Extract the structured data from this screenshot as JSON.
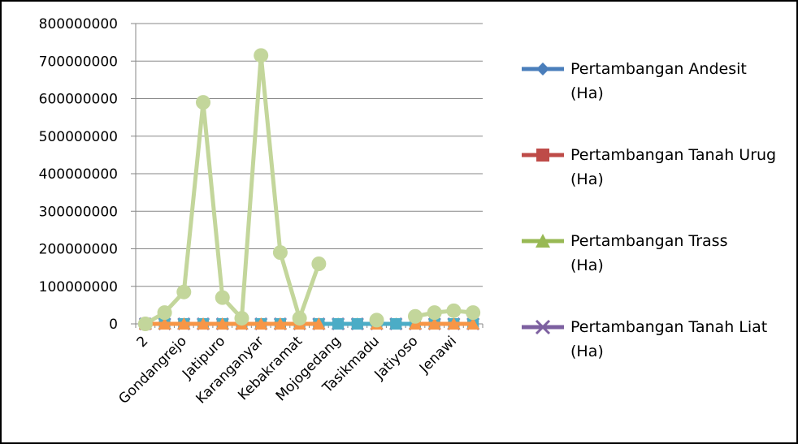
{
  "chart_data": {
    "type": "line",
    "title": "",
    "xlabel": "",
    "ylabel": "",
    "ylim": [
      0,
      800000000
    ],
    "yticks": [
      "0",
      "100000000",
      "200000000",
      "300000000",
      "400000000",
      "500000000",
      "600000000",
      "700000000",
      "800000000"
    ],
    "xtick_labels": [
      "2",
      "Gondangrejo",
      "Jatipuro",
      "Karanganyar",
      "Kebakramat",
      "Mojogedang",
      "Tasikmadu",
      "Jatiyoso",
      "Jenawi"
    ],
    "categories": [
      "2",
      "",
      "Gondangrejo",
      "",
      "Jatipuro",
      "",
      "Karanganyar",
      "",
      "Kebakramat",
      "",
      "Mojogedang",
      "",
      "Tasikmadu",
      "",
      "Jatiyoso",
      "",
      "Jenawi",
      ""
    ],
    "grid": true,
    "legend_position": "right",
    "series": [
      {
        "name": "Pertambangan Andesit (Ha)",
        "color": "#4a7ebb",
        "marker": "diamond",
        "in_legend": true,
        "values": [
          0,
          0,
          0,
          0,
          0,
          0,
          0,
          0,
          0,
          0,
          0,
          0,
          0,
          0,
          0,
          0,
          0,
          0
        ]
      },
      {
        "name": "Pertambangan Tanah Urug (Ha)",
        "color": "#be4b48",
        "marker": "square",
        "in_legend": true,
        "values": [
          0,
          0,
          0,
          0,
          0,
          0,
          0,
          0,
          0,
          0,
          0,
          0,
          0,
          0,
          0,
          0,
          0,
          0
        ]
      },
      {
        "name": "Pertambangan Trass (Ha)",
        "color": "#98b954",
        "marker": "triangle",
        "in_legend": true,
        "values": [
          0,
          0,
          0,
          0,
          0,
          0,
          0,
          0,
          0,
          0,
          0,
          0,
          0,
          0,
          0,
          0,
          0,
          0
        ]
      },
      {
        "name": "Pertambangan Tanah Liat (Ha)",
        "color": "#7d60a0",
        "marker": "x",
        "in_legend": true,
        "values": [
          0,
          0,
          0,
          0,
          0,
          0,
          0,
          0,
          0,
          0,
          0,
          0,
          0,
          0,
          0,
          0,
          0,
          0
        ]
      },
      {
        "color": "#4bacc6",
        "marker": "square",
        "in_legend": false,
        "values": [
          0,
          0,
          0,
          0,
          0,
          0,
          0,
          0,
          0,
          0,
          0,
          0,
          0,
          0,
          0,
          0,
          0,
          0
        ]
      },
      {
        "color": "#f79646",
        "marker": "triangle",
        "in_legend": false,
        "values": [
          0,
          0,
          0,
          0,
          0,
          0,
          0,
          0,
          0,
          0,
          null,
          null,
          0,
          null,
          0,
          0,
          0,
          0
        ]
      },
      {
        "color": "#c3d69b",
        "marker": "circle",
        "in_legend": false,
        "values": [
          0,
          30000000,
          85000000,
          590000000,
          70000000,
          15000000,
          715000000,
          190000000,
          15000000,
          160000000,
          null,
          null,
          10000000,
          null,
          20000000,
          30000000,
          35000000,
          30000000
        ]
      }
    ]
  }
}
